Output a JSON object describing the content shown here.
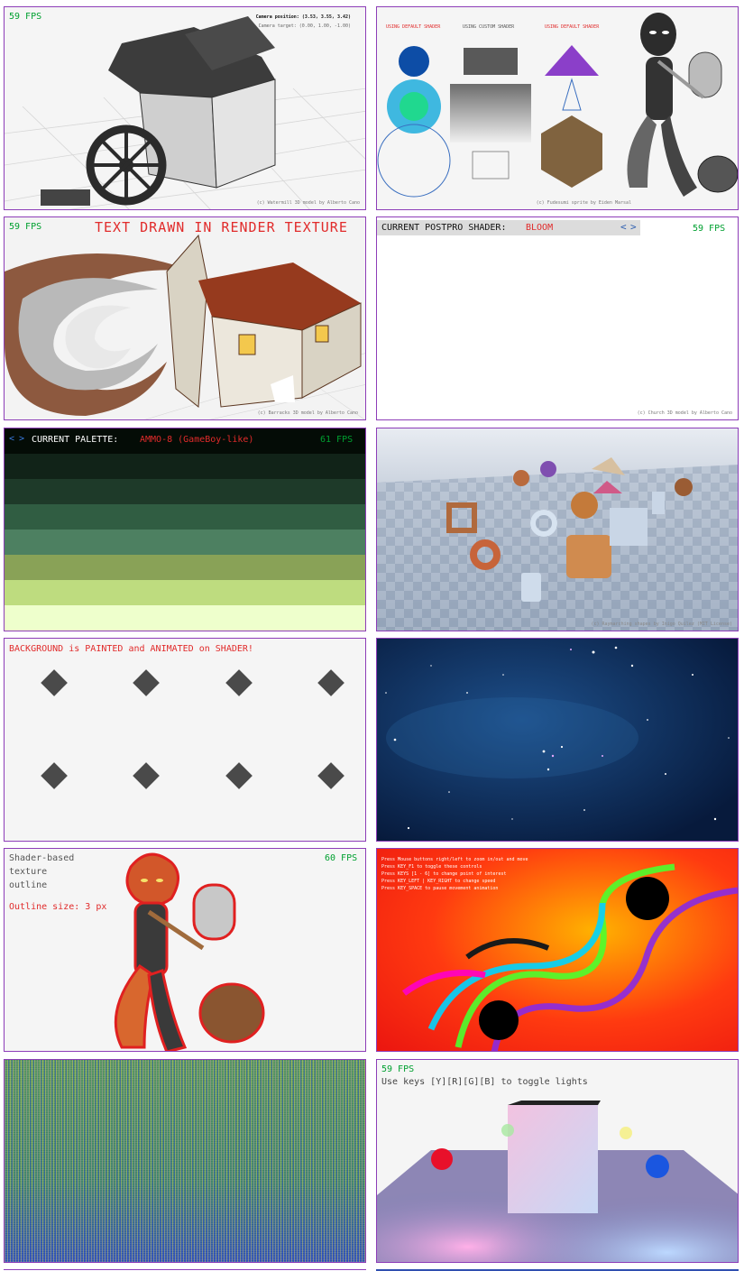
{
  "cards": [
    {
      "fps": "59 FPS",
      "camera_position": "Camera position: (3.53, 3.55, 3.42)",
      "camera_target": "Camera target: (0.00, 1.00, -1.00)",
      "credit": "(c) Watermill 3D model by Alberto Cano"
    },
    {
      "label_default_1": "USING DEFAULT SHADER",
      "label_custom": "USING CUSTOM SHADER",
      "label_default_2": "USING DEFAULT SHADER",
      "credit": "(c) Fudesumi sprite by Eiden Marsal"
    },
    {
      "fps": "59 FPS",
      "title": "TEXT DRAWN IN RENDER TEXTURE",
      "credit": "(c) Barracks 3D model by Alberto Cano"
    },
    {
      "label": "CURRENT POSTPRO SHADER:",
      "value": "BLOOM",
      "fps": "59 FPS",
      "credit": "(c) Church 3D model by Alberto Cano"
    },
    {
      "label": "CURRENT PALETTE:",
      "value": "AMMO-8 (GameBoy-like)",
      "fps": "61 FPS",
      "palette": [
        "#040c06",
        "#112318",
        "#1e3a29",
        "#305d42",
        "#4d8061",
        "#89a257",
        "#bedc7f",
        "#eeffcc"
      ]
    },
    {
      "credit": "(c) Raymarching shapes by Inigo Quilez (MIT License)"
    },
    {
      "title": "BACKGROUND is PAINTED and ANIMATED on SHADER!"
    },
    {},
    {
      "line1": "Shader-based",
      "line2": "texture",
      "line3": "outline",
      "outline": "Outline size: 3 px",
      "fps": "60 FPS"
    },
    {
      "help": [
        "Press Mouse buttons right/left to zoom in/out and move",
        "Press KEY_F1 to toggle these controls",
        "Press KEYS [1 - 6] to change point of interest",
        "Press KEY_LEFT | KEY_RIGHT to change speed",
        "Press KEY_SPACE to pause movement animation"
      ]
    },
    {},
    {
      "fps": "59 FPS",
      "instruction": "Use keys [Y][R][G][B] to toggle lights"
    }
  ]
}
